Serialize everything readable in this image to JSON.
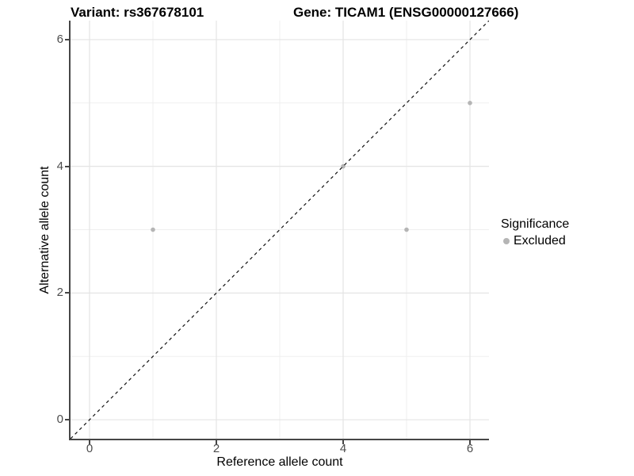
{
  "header": {
    "title_left": "Variant: rs367678101",
    "title_right": "Gene: TICAM1 (ENSG00000127666)"
  },
  "chart_data": {
    "type": "scatter",
    "title": "Variant: rs367678101   Gene: TICAM1 (ENSG00000127666)",
    "xlabel": "Reference allele count",
    "ylabel": "Alternative allele count",
    "xlim": [
      -0.3,
      6.3
    ],
    "ylim": [
      -0.3,
      6.3
    ],
    "x_ticks": [
      0,
      2,
      4,
      6
    ],
    "y_ticks": [
      0,
      2,
      4,
      6
    ],
    "x_minor_gridlines": [
      1,
      3,
      5
    ],
    "y_minor_gridlines": [
      1,
      3,
      5
    ],
    "grid": "major and minor, light grey on white",
    "reference_line": {
      "type": "identity y=x",
      "style": "dashed",
      "color": "#111111"
    },
    "series": [
      {
        "name": "Excluded",
        "marker": "circle",
        "color": "#b5b5b5",
        "points": [
          {
            "x": 1,
            "y": 3
          },
          {
            "x": 4,
            "y": 4
          },
          {
            "x": 5,
            "y": 3
          },
          {
            "x": 6,
            "y": 5
          }
        ]
      }
    ],
    "legend": {
      "title": "Significance",
      "position": "right",
      "entries": [
        {
          "label": "Excluded",
          "color": "#b5b5b5",
          "marker": "circle"
        }
      ]
    }
  },
  "colors": {
    "background": "#ffffff",
    "grid_major": "#e4e4e4",
    "grid_minor": "#efefef",
    "axis_line": "#464646",
    "tick_text": "#4d4d4d",
    "title_text": "#000000",
    "point": "#b5b5b5"
  }
}
